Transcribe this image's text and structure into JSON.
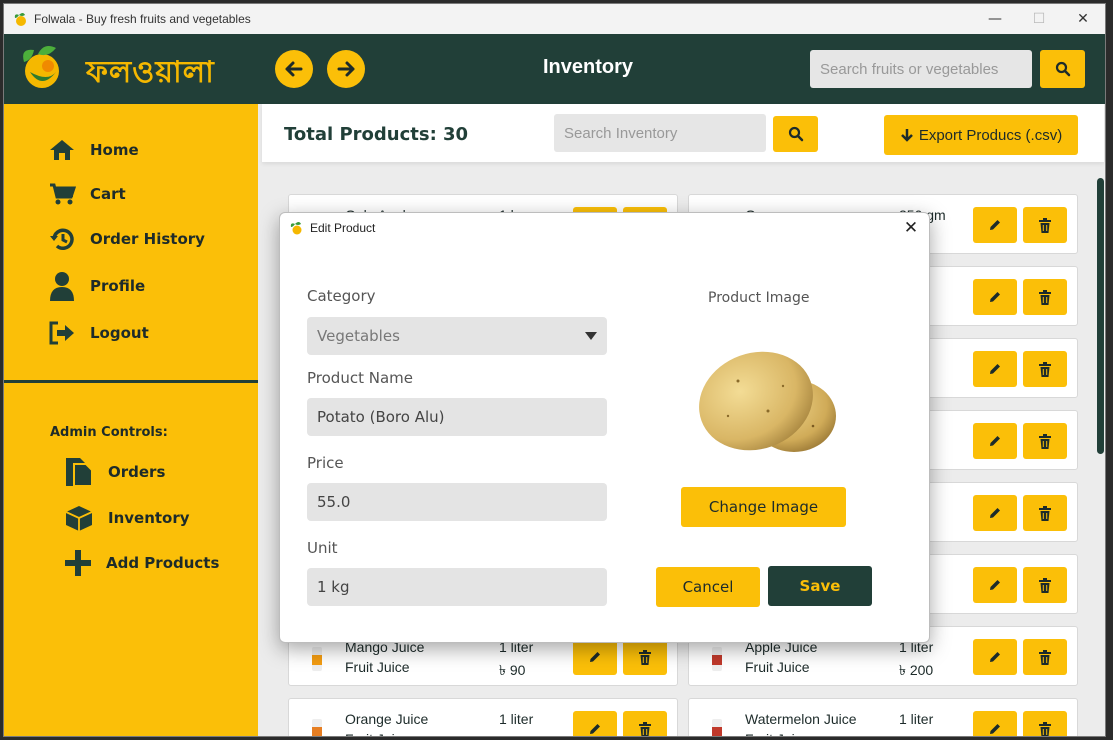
{
  "window": {
    "title": "Folwala - Buy fresh fruits and vegetables",
    "controls": {
      "minimize": "—",
      "maximize": "☐",
      "close": "✕"
    }
  },
  "header": {
    "logo_text": "ফলওয়ালা",
    "page_title": "Inventory",
    "search_placeholder": "Search fruits or vegetables"
  },
  "sidebar": {
    "items": [
      {
        "label": "Home",
        "icon": "home-icon"
      },
      {
        "label": "Cart",
        "icon": "cart-icon"
      },
      {
        "label": "Order History",
        "icon": "history-icon"
      },
      {
        "label": "Profile",
        "icon": "user-icon"
      },
      {
        "label": "Logout",
        "icon": "logout-icon"
      }
    ],
    "admin_label": "Admin Controls:",
    "admin_items": [
      {
        "label": "Orders",
        "icon": "orders-icon"
      },
      {
        "label": "Inventory",
        "icon": "box-icon"
      },
      {
        "label": "Add Products",
        "icon": "plus-icon"
      }
    ]
  },
  "topbar": {
    "total_products": "Total Products: 30",
    "search_placeholder": "Search Inventory",
    "export_label": "Export Producs (.csv)"
  },
  "products": [
    {
      "name": "Gala Apple",
      "category": "",
      "unit": "1 kg",
      "price": ""
    },
    {
      "name": "Grapes",
      "category": "",
      "unit": "250 gm",
      "price": ""
    },
    {
      "name": "",
      "category": "",
      "unit": "",
      "price": ""
    },
    {
      "name": "",
      "category": "",
      "unit": "",
      "price": ""
    },
    {
      "name": "",
      "category": "",
      "unit": "",
      "price": ""
    },
    {
      "name": "",
      "category": "",
      "unit": "",
      "price": ""
    },
    {
      "name": "",
      "category": "",
      "unit": "",
      "price": ""
    },
    {
      "name": "",
      "category": "",
      "unit": "",
      "price": ""
    },
    {
      "name": "",
      "category": "",
      "unit": "m",
      "price": ""
    },
    {
      "name": "",
      "category": "",
      "unit": "",
      "price": ""
    },
    {
      "name": "",
      "category": "",
      "unit": "",
      "price": ""
    },
    {
      "name": "",
      "category": "",
      "unit": "",
      "price": ""
    },
    {
      "name": "Mango Juice",
      "category": "Fruit Juice",
      "unit": "1 liter",
      "price": "৳ 90"
    },
    {
      "name": "Apple Juice",
      "category": "Fruit Juice",
      "unit": "1 liter",
      "price": "৳ 200"
    },
    {
      "name": "Orange Juice",
      "category": "Fruit Juice",
      "unit": "1 liter",
      "price": "৳ 250"
    },
    {
      "name": "Watermelon Juice",
      "category": "Fruit Juice",
      "unit": "1 liter",
      "price": "৳ 180"
    }
  ],
  "dialog": {
    "title": "Edit Product",
    "category_label": "Category",
    "category_value": "Vegetables",
    "name_label": "Product Name",
    "name_value": "Potato (Boro Alu)",
    "price_label": "Price",
    "price_value": "55.0",
    "unit_label": "Unit",
    "unit_value": "1 kg",
    "image_label": "Product Image",
    "change_image": "Change Image",
    "cancel": "Cancel",
    "save": "Save"
  },
  "colors": {
    "accent": "#fbbf08",
    "dark": "#213f38",
    "background": "#ececec"
  }
}
